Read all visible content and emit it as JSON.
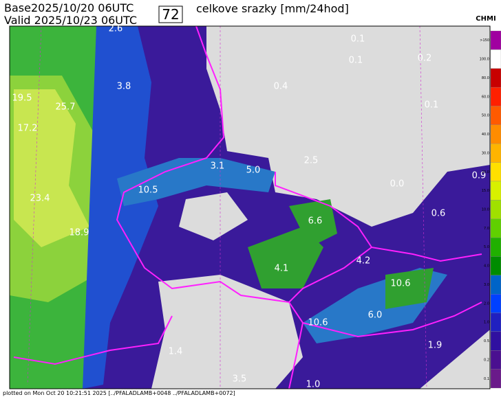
{
  "header": {
    "base": "Base2025/10/20 06UTC",
    "valid": "Valid 2025/10/23 06UTC",
    "step": "72",
    "title": "celkove srazky [mm/24hod]",
    "logo": "CHMI"
  },
  "map_labels": [
    "2.6",
    "0.1",
    "0.1",
    "0.2",
    "3.8",
    "0.4",
    "0.1",
    "19.5",
    "25.7",
    "17.2",
    "2.5",
    "3.1",
    "5.0",
    "10.5",
    "0.0",
    "0.9",
    "23.4",
    "0.6",
    "6.6",
    "18.9",
    "4.1",
    "4.2",
    "10.6",
    "6.0",
    "10.6",
    "1.9",
    "1.4",
    "3.5",
    "1.0"
  ],
  "legend": [
    {
      "label": ">150",
      "color": "#a000a0"
    },
    {
      "label": "100.0",
      "color": "#ffffff"
    },
    {
      "label": "80.0",
      "color": "#c80000"
    },
    {
      "label": "60.0",
      "color": "#ff2000"
    },
    {
      "label": "50.0",
      "color": "#ff5a00"
    },
    {
      "label": "40.0",
      "color": "#ff8c00"
    },
    {
      "label": "30.0",
      "color": "#ffb400"
    },
    {
      "label": "20.0",
      "color": "#ffe000"
    },
    {
      "label": "15.0",
      "color": "#d8f000"
    },
    {
      "label": "10.0",
      "color": "#a0e000"
    },
    {
      "label": "7.0",
      "color": "#60d000"
    },
    {
      "label": "5.0",
      "color": "#20b000"
    },
    {
      "label": "4.0",
      "color": "#008c00"
    },
    {
      "label": "3.0",
      "color": "#0064c8"
    },
    {
      "label": "2.0",
      "color": "#0040ff"
    },
    {
      "label": "1.0",
      "color": "#2020c0"
    },
    {
      "label": "0.5",
      "color": "#3010a0"
    },
    {
      "label": "0.2",
      "color": "#4a1090"
    },
    {
      "label": "0.1",
      "color": "#6a1a8a"
    }
  ],
  "footer": "plotted on Mon Oct 20 10:21:51 2025 [../PFALADLAMB+0048 ../PFALADLAMB+0072]"
}
